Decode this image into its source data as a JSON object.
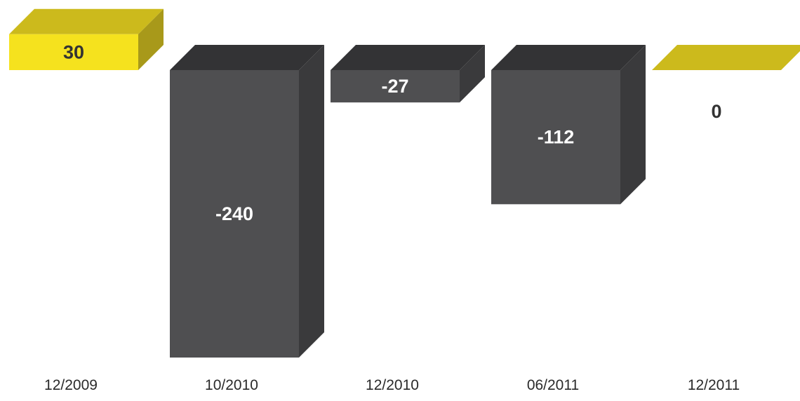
{
  "chart_data": {
    "type": "bar",
    "style": "3d",
    "categories": [
      "12/2009",
      "10/2010",
      "12/2010",
      "06/2011",
      "12/2011"
    ],
    "values": [
      30,
      -240,
      -27,
      -112,
      0
    ],
    "data_labels": [
      "30",
      "-240",
      "-27",
      "-112",
      "0"
    ],
    "grid": false,
    "legend": "none",
    "colors": {
      "positive": {
        "front": "#f5e21e",
        "top": "#ccba1c",
        "side": "#a8991a",
        "label": "#333333"
      },
      "negative": {
        "front": "#4f4f51",
        "top": "#333335",
        "side": "#3a3a3c",
        "label": "#ffffff"
      },
      "zero_label": "#333333"
    }
  }
}
